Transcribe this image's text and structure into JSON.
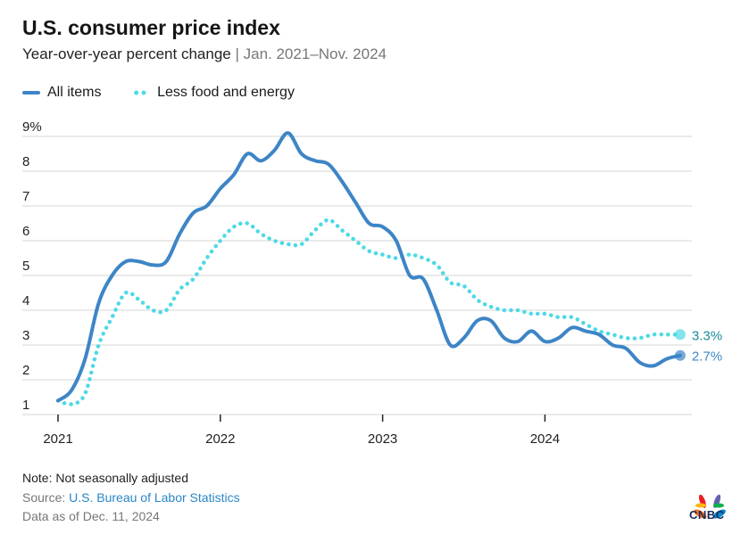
{
  "chart_data": {
    "type": "line",
    "title": "U.S. consumer price index",
    "subtitle": "Year-over-year percent change",
    "subtitle_range": "Jan. 2021–Nov. 2024",
    "x_start": "2021-01",
    "x_end": "2024-11",
    "x_ticks": [
      "2021",
      "2022",
      "2023",
      "2024"
    ],
    "y_ticks": [
      "1",
      "2",
      "3",
      "4",
      "5",
      "6",
      "7",
      "8",
      "9%"
    ],
    "ylim": [
      1,
      9
    ],
    "grid": true,
    "legend_position": "top-left",
    "series": [
      {
        "name": "All items",
        "color": "#3d85c6",
        "style": "solid",
        "end_label": "2.7%",
        "values": [
          1.4,
          1.7,
          2.6,
          4.2,
          5.0,
          5.4,
          5.4,
          5.3,
          5.4,
          6.2,
          6.8,
          7.0,
          7.5,
          7.9,
          8.5,
          8.3,
          8.6,
          9.1,
          8.5,
          8.3,
          8.2,
          7.7,
          7.1,
          6.5,
          6.4,
          6.0,
          5.0,
          4.9,
          4.0,
          3.0,
          3.2,
          3.7,
          3.7,
          3.2,
          3.1,
          3.4,
          3.1,
          3.2,
          3.5,
          3.4,
          3.3,
          3.0,
          2.9,
          2.5,
          2.4,
          2.6,
          2.7
        ]
      },
      {
        "name": "Less food and energy",
        "color": "#4dd9e6",
        "style": "dotted",
        "end_label": "3.3%",
        "values": [
          1.4,
          1.3,
          1.6,
          3.0,
          3.8,
          4.5,
          4.3,
          4.0,
          4.0,
          4.6,
          4.9,
          5.5,
          6.0,
          6.4,
          6.5,
          6.2,
          6.0,
          5.9,
          5.9,
          6.3,
          6.6,
          6.3,
          6.0,
          5.7,
          5.6,
          5.5,
          5.6,
          5.5,
          5.3,
          4.8,
          4.7,
          4.3,
          4.1,
          4.0,
          4.0,
          3.9,
          3.9,
          3.8,
          3.8,
          3.6,
          3.4,
          3.3,
          3.2,
          3.2,
          3.3,
          3.3,
          3.3
        ]
      }
    ]
  },
  "footer": {
    "note": "Note: Not seasonally adjusted",
    "source_prefix": "Source: ",
    "source_link": "U.S. Bureau of Labor Statistics",
    "data_as_of": "Data as of Dec. 11, 2024",
    "logo": "CNBC"
  }
}
